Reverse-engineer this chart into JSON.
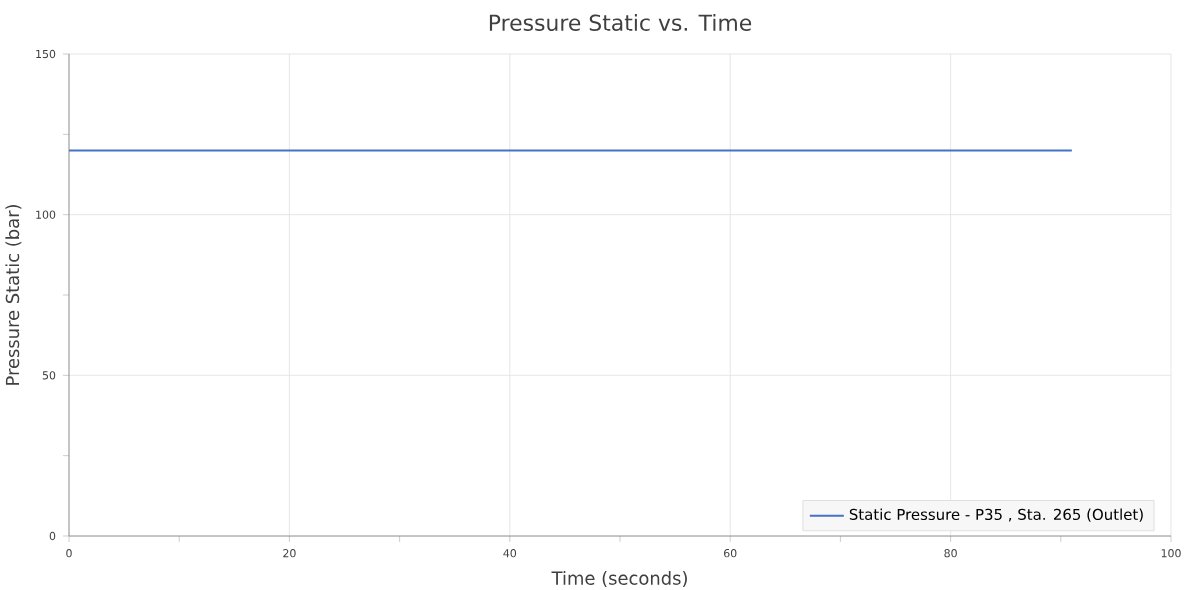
{
  "chart_data": {
    "type": "line",
    "title": "Pressure Static vs. Time",
    "xlabel": "Time (seconds)",
    "ylabel": "Pressure Static (bar)",
    "x": [
      0,
      91
    ],
    "series": [
      {
        "name": "Static Pressure - P35 , Sta. 265 (Outlet)",
        "color": "#4472c4",
        "values": [
          120,
          120
        ]
      }
    ],
    "xlim": [
      0,
      100
    ],
    "xticks": [
      0,
      20,
      40,
      60,
      80,
      100
    ],
    "ylim": [
      0,
      150
    ],
    "yticks": [
      0,
      50,
      100,
      150
    ],
    "grid": true,
    "legend": "bottom right",
    "marker": "none",
    "line_style": "solid"
  }
}
